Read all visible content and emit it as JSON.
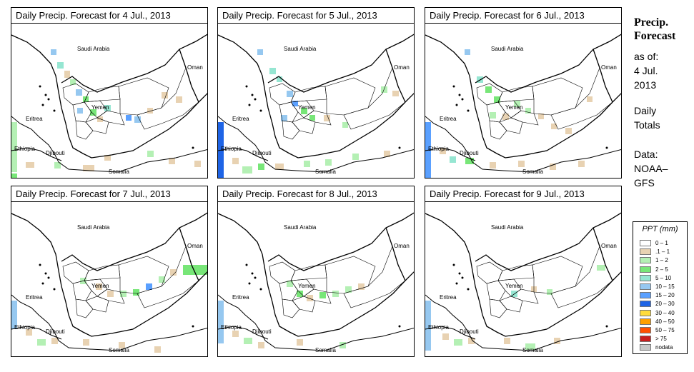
{
  "panels": [
    {
      "title": "Daily Precip. Forecast for  4 Jul., 2013"
    },
    {
      "title": "Daily Precip. Forecast for  5 Jul., 2013"
    },
    {
      "title": "Daily Precip. Forecast for  6 Jul., 2013"
    },
    {
      "title": "Daily Precip. Forecast for  7 Jul., 2013"
    },
    {
      "title": "Daily Precip. Forecast for  8 Jul., 2013"
    },
    {
      "title": "Daily Precip. Forecast for  9 Jul., 2013"
    }
  ],
  "map_labels": {
    "saudi": "Saudi Arabia",
    "oman": "Oman",
    "yemen": "Yemen",
    "eritrea": "Eritrea",
    "ethiopia": "Ethiopia",
    "djibouti": "Djibouti",
    "somalia": "Somalia"
  },
  "sidebar": {
    "heading1": "Precip.",
    "heading2": "Forecast",
    "asof1": "as of:",
    "asof2": "4 Jul.",
    "asof3": "2013",
    "daily1": "Daily",
    "daily2": "Totals",
    "data1": "Data:",
    "data2": "NOAA–",
    "data3": "GFS"
  },
  "legend": {
    "title": "PPT (mm)",
    "items": [
      {
        "label": "0 – 1",
        "color": "#ffffff"
      },
      {
        "label": ".1 – 1",
        "color": "#e8d2b2"
      },
      {
        "label": "1 – 2",
        "color": "#b4f0b4"
      },
      {
        "label": "2 – 5",
        "color": "#78e678"
      },
      {
        "label": "5 – 10",
        "color": "#96e6d2"
      },
      {
        "label": "10 – 15",
        "color": "#96c8f0"
      },
      {
        "label": "15 – 20",
        "color": "#5aa0ff"
      },
      {
        "label": "20 – 30",
        "color": "#1e64e6"
      },
      {
        "label": "30 – 40",
        "color": "#ffdc3c"
      },
      {
        "label": "40 – 50",
        "color": "#ffa000"
      },
      {
        "label": "50 – 75",
        "color": "#ff5000"
      },
      {
        "label": "> 75",
        "color": "#c81e1e"
      },
      {
        "label": "nodata",
        "color": "#c8c8c8"
      }
    ]
  }
}
